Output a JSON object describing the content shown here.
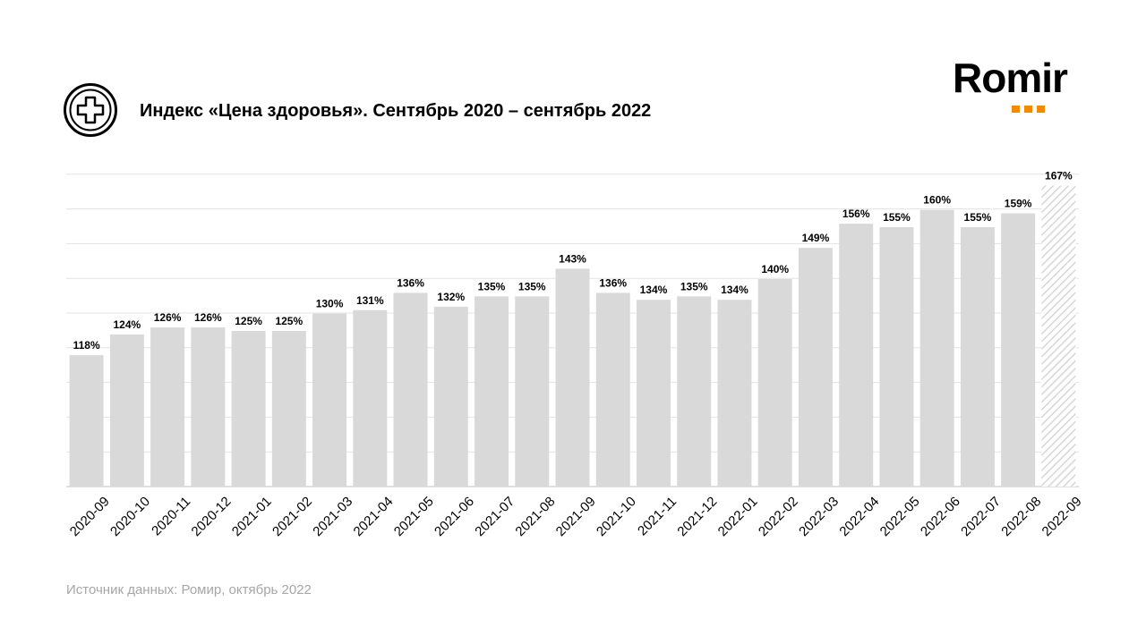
{
  "title": "Индекс «Цена здоровья». Сентябрь 2020 – сентябрь 2022",
  "logo": {
    "name": "Romir",
    "accent_color": "#f28b00"
  },
  "icon": "medical-cross-icon",
  "source": "Источник данных: Ромир, октябрь 2022",
  "chart_data": {
    "type": "bar",
    "title": "Индекс «Цена здоровья». Сентябрь 2020 – сентябрь 2022",
    "categories": [
      "2020-09",
      "2020-10",
      "2020-11",
      "2020-12",
      "2021-01",
      "2021-02",
      "2021-03",
      "2021-04",
      "2021-05",
      "2021-06",
      "2021-07",
      "2021-08",
      "2021-09",
      "2021-10",
      "2021-11",
      "2021-12",
      "2022-01",
      "2022-02",
      "2022-03",
      "2022-04",
      "2022-05",
      "2022-06",
      "2022-07",
      "2022-08",
      "2022-09"
    ],
    "values": [
      118,
      124,
      126,
      126,
      125,
      125,
      130,
      131,
      136,
      132,
      135,
      135,
      143,
      136,
      134,
      135,
      134,
      140,
      149,
      156,
      155,
      160,
      155,
      159,
      167
    ],
    "labels": [
      "118%",
      "124%",
      "126%",
      "126%",
      "125%",
      "125%",
      "130%",
      "131%",
      "136%",
      "132%",
      "135%",
      "135%",
      "143%",
      "136%",
      "134%",
      "135%",
      "134%",
      "140%",
      "149%",
      "156%",
      "155%",
      "160%",
      "155%",
      "159%",
      "167%"
    ],
    "highlighted_last_bar": "hatched",
    "bar_color": "#d9d9d9",
    "grid": true,
    "ylim": [
      80,
      170
    ],
    "xlabel": "",
    "ylabel": ""
  }
}
